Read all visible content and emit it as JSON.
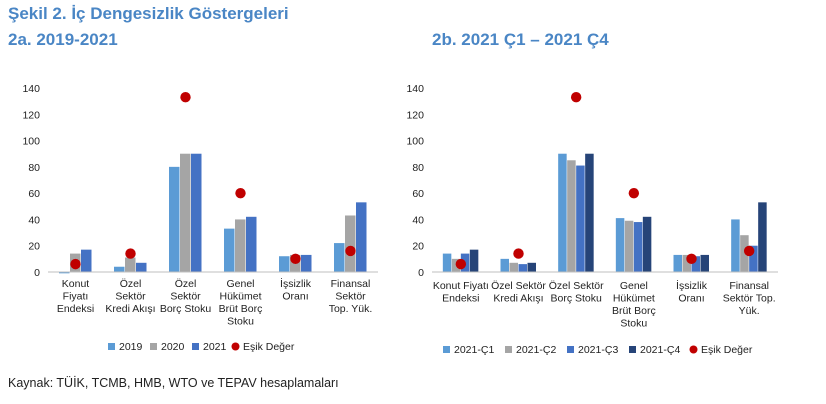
{
  "figure_title": "Şekil 2. İç Dengesizlik Göstergeleri",
  "source": "Kaynak: TÜİK, TCMB, HMB, WTO ve TEPAV hesaplamaları",
  "chart_data": [
    {
      "type": "bar",
      "title": "2a. 2019-2021",
      "ylim": [
        0,
        140
      ],
      "yticks": [
        0,
        20,
        40,
        60,
        80,
        100,
        120,
        140
      ],
      "grid": false,
      "legend_position": "bottom",
      "categories": [
        [
          "Konut",
          "Fiyatı",
          "Endeksi"
        ],
        [
          "Özel",
          "Sektör",
          "Kredi Akışı"
        ],
        [
          "Özel",
          "Sektör",
          "Borç Stoku"
        ],
        [
          "Genel",
          "Hükümet",
          "Brüt Borç",
          "Stoku"
        ],
        [
          "İşsizlik",
          "Oranı"
        ],
        [
          "Finansal",
          "Sektör",
          "Top. Yük."
        ]
      ],
      "series": [
        {
          "name": "2019",
          "color": "#5b9bd5",
          "values": [
            -1,
            4,
            80,
            33,
            12,
            22
          ]
        },
        {
          "name": "2020",
          "color": "#a5a5a5",
          "values": [
            14,
            11,
            90,
            40,
            13,
            43
          ]
        },
        {
          "name": "2021",
          "color": "#4472c4",
          "values": [
            17,
            7,
            90,
            42,
            13,
            53
          ]
        }
      ],
      "threshold": {
        "name": "Eşik Değer",
        "color": "#c00000",
        "values": [
          6,
          14,
          133,
          60,
          10,
          16
        ]
      }
    },
    {
      "type": "bar",
      "title": "2b. 2021 Ç1 – 2021 Ç4",
      "ylim": [
        0,
        140
      ],
      "yticks": [
        0,
        20,
        40,
        60,
        80,
        100,
        120,
        140
      ],
      "grid": false,
      "legend_position": "bottom",
      "categories": [
        [
          "Konut Fiyatı",
          "Endeksi"
        ],
        [
          "Özel Sektör",
          "Kredi Akışı"
        ],
        [
          "Özel Sektör",
          "Borç Stoku"
        ],
        [
          "Genel",
          "Hükümet",
          "Brüt Borç",
          "Stoku"
        ],
        [
          "İşsizlik",
          "Oranı"
        ],
        [
          "Finansal",
          "Sektör Top.",
          "Yük."
        ]
      ],
      "series": [
        {
          "name": "2021-Ç1",
          "color": "#5b9bd5",
          "values": [
            14,
            10,
            90,
            41,
            13,
            40
          ]
        },
        {
          "name": "2021-Ç2",
          "color": "#a5a5a5",
          "values": [
            10,
            7,
            85,
            39,
            13,
            28
          ]
        },
        {
          "name": "2021-Ç3",
          "color": "#4472c4",
          "values": [
            14,
            6,
            81,
            38,
            12,
            20
          ]
        },
        {
          "name": "2021-Ç4",
          "color": "#264478",
          "values": [
            17,
            7,
            90,
            42,
            13,
            53
          ]
        }
      ],
      "threshold": {
        "name": "Eşik Değer",
        "color": "#c00000",
        "values": [
          6,
          14,
          133,
          60,
          10,
          16
        ]
      }
    }
  ]
}
